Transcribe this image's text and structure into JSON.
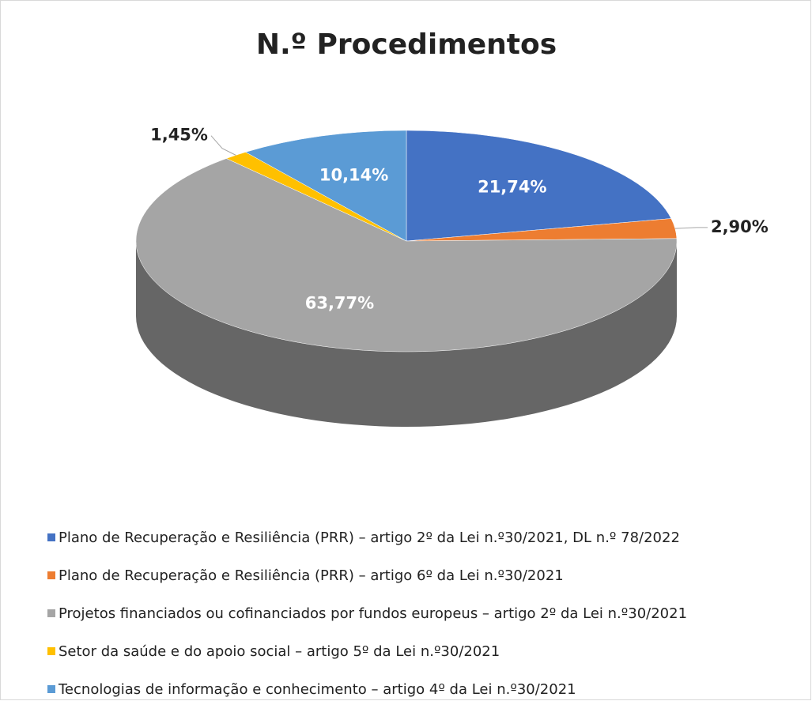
{
  "chart_data": {
    "type": "pie",
    "title": "N.º Procedimentos",
    "categories": [
      "Plano de Recuperação e Resiliência (PRR) – artigo 2º da Lei n.º30/2021, DL n.º 78/2022",
      "Plano de Recuperação e Resiliência (PRR) – artigo 6º da Lei n.º30/2021",
      "Projetos financiados ou cofinanciados por fundos europeus – artigo 2º da Lei n.º30/2021",
      "Setor da saúde e do apoio social – artigo 5º da Lei n.º30/2021",
      "Tecnologias de informação e conhecimento – artigo 4º da Lei n.º30/2021"
    ],
    "values": [
      21.74,
      2.9,
      63.77,
      1.45,
      10.14
    ],
    "value_labels": [
      "21,74%",
      "2,90%",
      "63,77%",
      "1,45%",
      "10,14%"
    ],
    "colors": [
      "#4472c4",
      "#ed7d31",
      "#a5a5a5",
      "#ffc000",
      "#5b9bd5"
    ]
  }
}
